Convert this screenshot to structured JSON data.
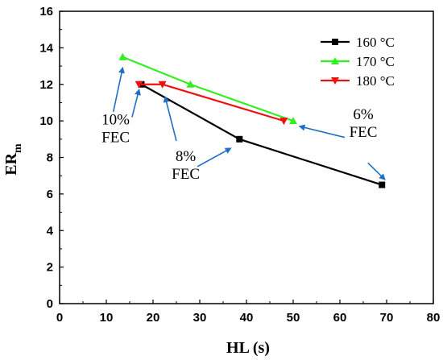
{
  "chart_data": {
    "type": "line",
    "xlabel": "HL (s)",
    "ylabel": "ERm",
    "ylabel_main": "ER",
    "ylabel_sub": "m",
    "xlim": [
      0,
      80
    ],
    "ylim": [
      0,
      16
    ],
    "xticks": [
      0,
      10,
      20,
      30,
      40,
      50,
      60,
      70,
      80
    ],
    "yticks": [
      0,
      2,
      4,
      6,
      8,
      10,
      12,
      14,
      16
    ],
    "grid": false,
    "legend_position": "top-right",
    "series": [
      {
        "name": "160 °C",
        "color": "#000000",
        "marker": "square",
        "points": [
          [
            17.5,
            12.0
          ],
          [
            38.5,
            9.0
          ],
          [
            69.0,
            6.5
          ]
        ]
      },
      {
        "name": "170 °C",
        "color": "#33ee22",
        "marker": "triangle-up",
        "points": [
          [
            13.5,
            13.5
          ],
          [
            28.0,
            12.0
          ],
          [
            50.0,
            10.0
          ]
        ]
      },
      {
        "name": "180 °C",
        "color": "#ee1111",
        "marker": "triangle-down",
        "points": [
          [
            17.0,
            12.0
          ],
          [
            22.0,
            12.0
          ],
          [
            48.0,
            10.0
          ]
        ]
      }
    ],
    "annotations": [
      {
        "lines": [
          "10%",
          "FEC"
        ],
        "arrows": [
          {
            "from": [
              11.5,
              10.5
            ],
            "to": [
              13.5,
              12.9
            ]
          },
          {
            "from": [
              15.5,
              10.2
            ],
            "to": [
              17.0,
              11.7
            ]
          }
        ],
        "text_at": [
          12.0,
          9.8
        ]
      },
      {
        "lines": [
          "8%",
          "FEC"
        ],
        "arrows": [
          {
            "from": [
              25.0,
              8.9
            ],
            "to": [
              22.6,
              11.3
            ]
          },
          {
            "from": [
              29.5,
              7.5
            ],
            "to": [
              36.6,
              8.5
            ]
          }
        ],
        "text_at": [
          27.0,
          7.8
        ]
      },
      {
        "lines": [
          "6%",
          "FEC"
        ],
        "arrows": [
          {
            "from": [
              61.0,
              9.1
            ],
            "to": [
              51.4,
              9.7
            ]
          },
          {
            "from": [
              66.0,
              7.7
            ],
            "to": [
              69.6,
              6.8
            ]
          }
        ],
        "text_at": [
          65.0,
          10.1
        ]
      }
    ]
  }
}
